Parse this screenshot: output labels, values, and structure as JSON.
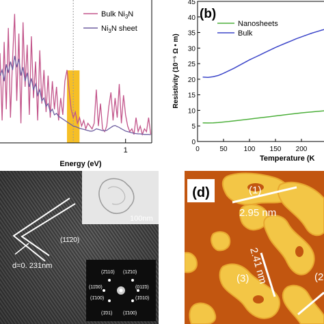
{
  "chart_data": [
    {
      "type": "line",
      "panel": "a",
      "xlabel": "Energy (eV)",
      "ylabel": "",
      "xlim": [
        -1.4,
        1.5
      ],
      "x_ticks": [
        "1"
      ],
      "legend_position": "top-right",
      "highlight_band": {
        "x_range": [
          -0.12,
          0.12
        ],
        "color": "#f5b400"
      },
      "series": [
        {
          "name": "Bulk Ni3N",
          "color": "#c2548a",
          "x": [
            -1.4,
            -1.36,
            -1.32,
            -1.28,
            -1.24,
            -1.2,
            -1.16,
            -1.12,
            -1.08,
            -1.04,
            -1.0,
            -0.96,
            -0.92,
            -0.88,
            -0.84,
            -0.8,
            -0.76,
            -0.72,
            -0.68,
            -0.64,
            -0.6,
            -0.56,
            -0.52,
            -0.48,
            -0.44,
            -0.4,
            -0.36,
            -0.32,
            -0.28,
            -0.24,
            -0.2,
            -0.16,
            -0.12,
            -0.08,
            -0.04,
            0.0,
            0.04,
            0.08,
            0.12,
            0.16,
            0.2,
            0.24,
            0.28,
            0.32,
            0.36,
            0.4,
            0.44,
            0.48,
            0.52,
            0.56,
            0.6,
            0.64,
            0.68,
            0.72,
            0.76,
            0.8,
            0.84,
            0.88,
            0.92,
            0.96,
            1.0,
            1.04,
            1.08,
            1.12,
            1.16,
            1.2,
            1.24,
            1.28,
            1.32,
            1.36,
            1.4,
            1.44,
            1.48
          ],
          "y": [
            3.2,
            0.8,
            3.6,
            1.2,
            4.1,
            0.9,
            3.0,
            4.6,
            1.5,
            3.9,
            0.7,
            4.3,
            2.0,
            3.5,
            1.0,
            3.8,
            1.6,
            2.9,
            0.8,
            3.3,
            1.4,
            2.6,
            1.1,
            2.4,
            0.9,
            2.2,
            1.2,
            2.0,
            0.8,
            1.6,
            1.0,
            2.2,
            2.6,
            1.9,
            1.2,
            0.9,
            1.1,
            0.7,
            0.9,
            0.6,
            0.8,
            0.5,
            0.7,
            0.6,
            0.5,
            0.7,
            1.9,
            0.6,
            1.4,
            0.5,
            0.4,
            0.6,
            1.3,
            1.8,
            0.8,
            1.6,
            0.9,
            2.1,
            0.7,
            1.7,
            1.0,
            0.6,
            0.4,
            0.5,
            0.3,
            0.9,
            0.4,
            0.6,
            0.3,
            0.5,
            0.4,
            0.9,
            0.3
          ]
        },
        {
          "name": "Ni3N sheet",
          "color": "#6e5fa0",
          "x": [
            -1.4,
            -1.36,
            -1.32,
            -1.28,
            -1.24,
            -1.2,
            -1.16,
            -1.12,
            -1.08,
            -1.04,
            -1.0,
            -0.96,
            -0.92,
            -0.88,
            -0.84,
            -0.8,
            -0.76,
            -0.72,
            -0.68,
            -0.64,
            -0.6,
            -0.56,
            -0.52,
            -0.48,
            -0.44,
            -0.4,
            -0.36,
            -0.32,
            -0.28,
            -0.24,
            -0.2,
            -0.16,
            -0.12,
            -0.08,
            -0.04,
            0.0,
            0.04,
            0.08,
            0.12,
            0.16,
            0.2,
            0.24,
            0.28,
            0.32,
            0.36,
            0.4,
            0.44,
            0.48,
            0.52,
            0.56,
            0.6,
            0.64,
            0.68,
            0.72,
            0.76,
            0.8,
            0.84,
            0.88,
            0.92,
            0.96,
            1.0,
            1.04,
            1.08,
            1.12,
            1.16,
            1.2,
            1.24,
            1.28,
            1.32,
            1.36,
            1.4,
            1.44,
            1.48
          ],
          "y": [
            2.4,
            2.6,
            2.2,
            2.8,
            2.5,
            2.9,
            2.6,
            3.1,
            2.7,
            3.0,
            2.4,
            2.7,
            2.2,
            2.5,
            2.0,
            2.3,
            1.9,
            2.1,
            1.7,
            1.9,
            1.5,
            1.6,
            1.3,
            1.4,
            1.1,
            1.2,
            1.0,
            1.05,
            0.95,
            0.9,
            0.85,
            0.8,
            0.75,
            0.7,
            0.65,
            0.6,
            0.58,
            0.55,
            0.52,
            0.5,
            0.48,
            0.46,
            0.44,
            0.42,
            0.42,
            0.45,
            0.5,
            0.48,
            0.46,
            0.44,
            0.43,
            0.45,
            0.5,
            0.55,
            0.6,
            0.62,
            0.58,
            0.55,
            0.5,
            0.46,
            0.42,
            0.4,
            0.38,
            0.36,
            0.34,
            0.33,
            0.32,
            0.32,
            0.31,
            0.3,
            0.3,
            0.3,
            0.29
          ]
        }
      ]
    },
    {
      "type": "line",
      "panel": "b",
      "xlabel": "Temperature (K",
      "ylabel": "Resistivity (10⁻⁵ Ω • m)",
      "xlim": [
        0,
        250
      ],
      "ylim": [
        0,
        45
      ],
      "x_ticks": [
        "0",
        "50",
        "100",
        "150",
        "200"
      ],
      "y_ticks": [
        "0",
        "5",
        "10",
        "15",
        "20",
        "25",
        "30",
        "35",
        "40",
        "45"
      ],
      "legend_position": "top-left",
      "series": [
        {
          "name": "Nanosheets",
          "color": "#4caf3a",
          "x": [
            10,
            20,
            30,
            40,
            50,
            60,
            70,
            80,
            90,
            100,
            110,
            120,
            130,
            140,
            150,
            160,
            170,
            180,
            190,
            200,
            210,
            220,
            230,
            240,
            250
          ],
          "y": [
            6.0,
            5.95,
            6.0,
            6.1,
            6.25,
            6.4,
            6.6,
            6.8,
            7.0,
            7.2,
            7.4,
            7.6,
            7.8,
            8.0,
            8.2,
            8.4,
            8.6,
            8.8,
            9.0,
            9.2,
            9.35,
            9.5,
            9.65,
            9.8,
            9.95
          ]
        },
        {
          "name": "Bulk",
          "color": "#3b45c9",
          "x": [
            10,
            20,
            30,
            40,
            50,
            60,
            70,
            80,
            90,
            100,
            110,
            120,
            130,
            140,
            150,
            160,
            170,
            180,
            190,
            200,
            210,
            220,
            230,
            240,
            250
          ],
          "y": [
            20.7,
            20.6,
            20.8,
            21.2,
            21.9,
            22.7,
            23.5,
            24.4,
            25.3,
            26.2,
            27.0,
            27.8,
            28.6,
            29.4,
            30.2,
            30.9,
            31.6,
            32.3,
            33.0,
            33.6,
            34.2,
            34.8,
            35.3,
            35.8,
            36.2
          ]
        }
      ]
    }
  ],
  "panels": {
    "a": {
      "legend": {
        "bulk_label": "Bulk Ni",
        "bulk_sub": "3",
        "bulk_suffix": "N",
        "sheet_label": "Ni",
        "sheet_sub": "3",
        "sheet_suffix": "N sheet"
      }
    },
    "b": {
      "label": "(b)"
    },
    "c": {
      "inset_scale": "100nm",
      "miller": "(11̄20)",
      "spacing": "d=0. 231nm",
      "fft_spots": [
        "(2̄110)",
        "(12̄10)",
        "(11̄00)",
        "(011̄0)",
        "(1̄100)",
        "(1̄010)",
        "(1̄01)",
        "(1̄100)"
      ]
    },
    "d": {
      "label": "(d)",
      "m1_tag": "(1)",
      "m1_value": "2.95 nm",
      "m2_value": "2.41 nm",
      "m3_tag": "(3)",
      "m4_tag": "(2"
    }
  }
}
